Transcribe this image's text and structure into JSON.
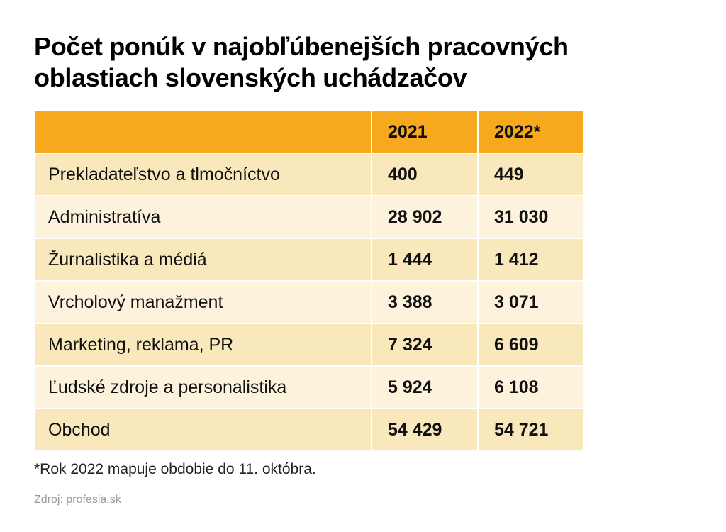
{
  "title": {
    "line1": "Počet ponúk v najobľúbenejších pracovných",
    "line2": "oblastiach slovenských uchádzačov"
  },
  "chart_data": {
    "type": "table",
    "title": "Počet ponúk v najobľúbenejších pracovných oblastiach slovenských uchádzačov",
    "columns": [
      "",
      "2021",
      "2022*"
    ],
    "rows": [
      {
        "label": "Prekladateľstvo a tlmočníctvo",
        "y2021": "400",
        "y2022": "449"
      },
      {
        "label": "Administratíva",
        "y2021": "28 902",
        "y2022": "31 030"
      },
      {
        "label": "Žurnalistika a médiá",
        "y2021": "1 444",
        "y2022": "1 412"
      },
      {
        "label": "Vrcholový manažment",
        "y2021": "3 388",
        "y2022": "3 071"
      },
      {
        "label": "Marketing, reklama, PR",
        "y2021": "7 324",
        "y2022": "6 609"
      },
      {
        "label": "Ľudské zdroje a personalistika",
        "y2021": "5 924",
        "y2022": "6 108"
      },
      {
        "label": "Obchod",
        "y2021": "54 429",
        "y2022": "54 721"
      }
    ],
    "series": [
      {
        "name": "2021",
        "values": [
          400,
          28902,
          1444,
          3388,
          7324,
          5924,
          54429
        ]
      },
      {
        "name": "2022*",
        "values": [
          449,
          31030,
          1412,
          3071,
          6609,
          6108,
          54721
        ]
      }
    ]
  },
  "note": "*Rok 2022 mapuje obdobie do 11. októbra.",
  "source": "Zdroj: profesia.sk",
  "colors": {
    "header": "#f6a91c",
    "row_odd": "#fae8bd",
    "row_even": "#fdf3dc"
  }
}
